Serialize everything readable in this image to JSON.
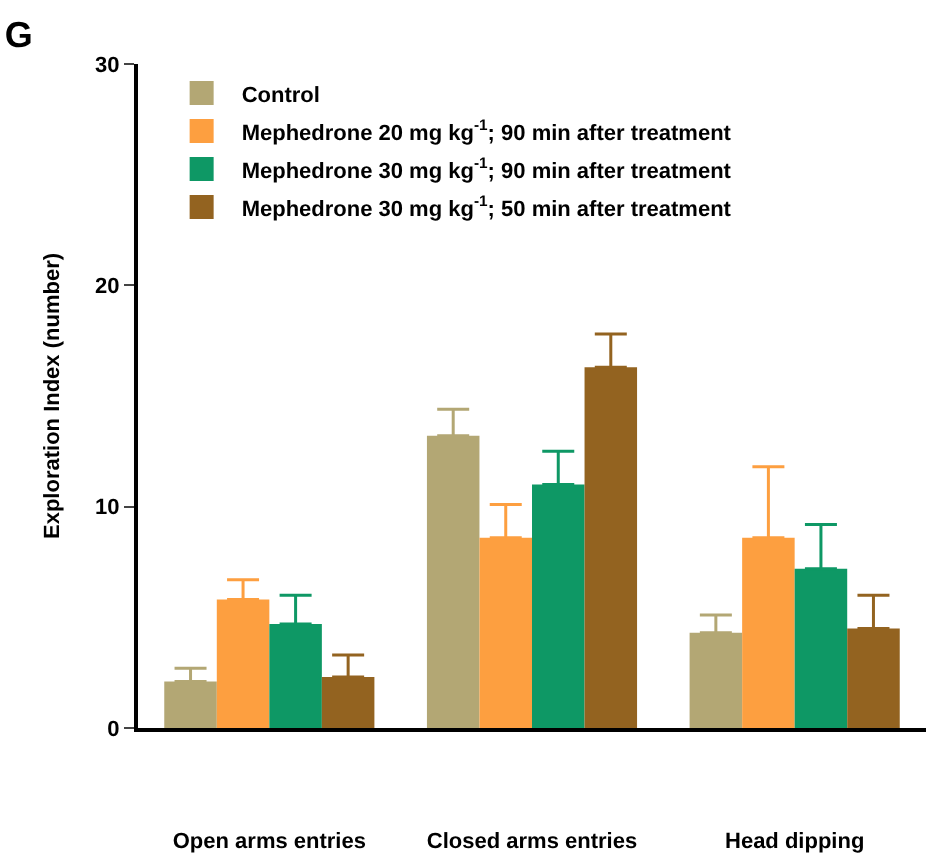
{
  "chart_data": {
    "type": "bar",
    "title": "G",
    "ylabel": "Exploration Index (number)",
    "categories": [
      "Open arms entries",
      "Closed arms entries",
      "Head dipping"
    ],
    "series": [
      {
        "name": "Control",
        "color": "#b3a774",
        "values": [
          2.1,
          13.2,
          4.3
        ],
        "errors": [
          [
            2.1,
            2.7
          ],
          [
            13.2,
            14.4
          ],
          [
            4.3,
            5.1
          ]
        ]
      },
      {
        "name": "Mephedrone 20 mg kg$^{-1}$; 90 min after treatment",
        "color": "#fd9f40",
        "values": [
          5.8,
          8.6,
          8.6
        ],
        "errors": [
          [
            5.8,
            6.7
          ],
          [
            8.6,
            10.1
          ],
          [
            8.6,
            11.8
          ]
        ]
      },
      {
        "name": "Mephedrone 30 mg kg$^{-1}$; 90 min after treatment",
        "color": "#0e9865",
        "values": [
          4.7,
          11.0,
          7.2
        ],
        "errors": [
          [
            4.7,
            6.0
          ],
          [
            11.0,
            12.5
          ],
          [
            7.2,
            9.2
          ]
        ]
      },
      {
        "name": "Mephedrone 30 mg kg$^{-1}$; 50 min after treatment",
        "color": "#936320",
        "values": [
          2.3,
          16.3,
          4.5
        ],
        "errors": [
          [
            2.3,
            3.3
          ],
          [
            16.3,
            17.8
          ],
          [
            4.5,
            6.0
          ]
        ]
      }
    ],
    "ylim": [
      0,
      30
    ],
    "yticks": [
      0,
      10,
      20,
      30
    ],
    "legend": "top left"
  }
}
